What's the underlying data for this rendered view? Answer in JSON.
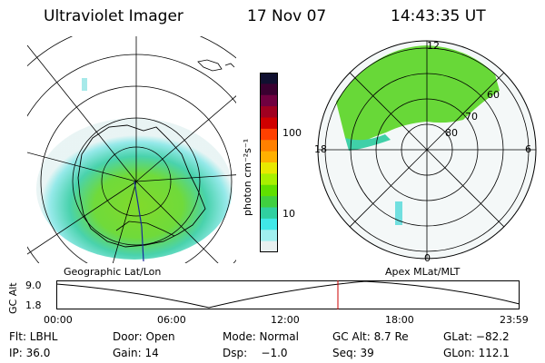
{
  "header": {
    "instrument": "Ultraviolet Imager",
    "date": "17 Nov 07",
    "time": "14:43:35 UT"
  },
  "colorbar": {
    "unit_label": "photon cm⁻²s⁻¹",
    "ticks": [
      "100",
      "10"
    ],
    "colors": [
      "#101030",
      "#3a0030",
      "#700040",
      "#a00020",
      "#d00000",
      "#ff4000",
      "#ff8000",
      "#ffb000",
      "#e8e800",
      "#a8f000",
      "#60e000",
      "#40d040",
      "#30d0a0",
      "#40e8e8",
      "#a0f0f0",
      "#e8f0f0"
    ]
  },
  "geo_panel": {
    "title": "Geographic Lat/Lon"
  },
  "apex_panel": {
    "title": "Apex MLat/MLT",
    "mlt_labels": {
      "top": "12",
      "left": "18",
      "right": "6",
      "bottom": "0"
    },
    "mlat_labels": [
      "60",
      "70",
      "80"
    ]
  },
  "altitude_plot": {
    "ylabel": "GC Alt",
    "ymax": "9.0",
    "ymin": "1.8",
    "xticks": [
      "00:00",
      "06:00",
      "12:00",
      "18:00",
      "23:59"
    ],
    "marker_color": "#cc0000"
  },
  "info": {
    "filter_label": "Flt: LBHL",
    "door_label": "Door: Open",
    "mode_label": "Mode: Normal",
    "gcalt_label": "GC Alt: 8.7 Re",
    "glat_label": "GLat: −82.2",
    "ip_label": "IP: 36.0",
    "gain_label": "Gain: 14",
    "dsp_label": "Dsp:    −1.0",
    "seq_label": "Seq: 39",
    "glon_label": "GLon: 112.1"
  }
}
